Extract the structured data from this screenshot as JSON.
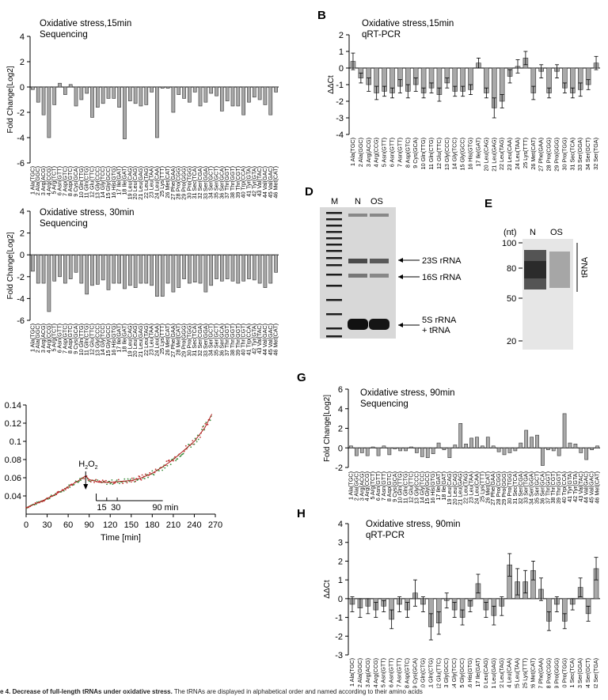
{
  "panels": {
    "B": "B",
    "D": "D",
    "E": "E",
    "G": "G",
    "H": "H"
  },
  "caption": {
    "bold": "e 4. Decrease of full-length tRNAs under oxidative stress.",
    "rest": " The tRNAs are displayed in alphabetical order and named according to their amino acids"
  },
  "gel_d": {
    "lanes": [
      "M",
      "N",
      "OS"
    ],
    "bands": [
      "23S rRNA",
      "16S rRNA",
      "5S rRNA",
      "+ tRNA"
    ]
  },
  "gel_e": {
    "lanes": [
      "N",
      "OS"
    ],
    "unit": "(nt)",
    "markers": [
      "100",
      "80",
      "50",
      "20"
    ],
    "bracket_label": "tRNA"
  },
  "chart_data": [
    {
      "id": "A",
      "type": "bar",
      "title": "Oxidative stress,15min",
      "subtitle": "Sequencing",
      "ylabel": "Fold Change[Log2]",
      "ylim": [
        -6,
        4
      ],
      "yticks": [
        "4",
        "2",
        "0",
        "-2",
        "-4",
        "-6"
      ],
      "categories": [
        "1 Ala(TGC)",
        "2 Ala(GGC)",
        "3 Arg(ACG)",
        "4 Arg(CCG)",
        "5 Arg(TCT)",
        "6 Asn(GTT)",
        "7 Asp(GTC)",
        "8 Asp(GTC)",
        "9 Cys(GCA)",
        "10 Gln(TTG)",
        "11 Gln(CTG)",
        "12 Glu(TTC)",
        "13 Gly(CCC)",
        "14 Gly(TCC)",
        "15 Gly(GCC)",
        "16 His(GTG)",
        "17 Ile(GAT)",
        "18 Ile(GAT)",
        "19 Leu(CAG)",
        "20 Leu(CAG)",
        "21 Leu(GAG)",
        "22 Leu(TAG)",
        "23 Leu(TAA)",
        "24 Leu(CAA)",
        "25 Lys(TTT)",
        "26 Met(CAT)",
        "27 Phe(GAA)",
        "28 Pro(CGG)",
        "29 Pro(GGG)",
        "30 Pro(TGG)",
        "31 Sec(TCA)",
        "32 Ser(CGA)",
        "33 Ser(GGA)",
        "34 Ser(GCT)",
        "35 Ser(GCT)",
        "36 Ser(GCA)",
        "37 Thr(GGT)",
        "38 Thr(GGT)",
        "39 Thr(CGT)",
        "40 Trp(CCA)",
        "41 Tyr(GTA)",
        "42 Tyr(GTA)",
        "43 Val(TAC)",
        "44 Val(GAC)",
        "45 Val(GAC)",
        "46 Met(CAT)"
      ],
      "values": [
        -0.2,
        -1.2,
        -2.2,
        -4.0,
        -1.4,
        0.3,
        -0.6,
        0.2,
        -1.5,
        -1.0,
        -0.5,
        -2.4,
        -1.6,
        -1.3,
        -0.9,
        -0.9,
        -1.6,
        -4.1,
        -1.1,
        -1.3,
        -1.5,
        -1.4,
        -0.4,
        -4.0,
        -0.1,
        -0.1,
        -2.0,
        -0.6,
        -0.9,
        -1.2,
        -0.4,
        -1.5,
        -1.2,
        -0.5,
        -0.7,
        -1.9,
        -1.1,
        -1.5,
        -1.5,
        -2.2,
        -1.2,
        -0.8,
        -1.0,
        -1.4,
        -2.2,
        -0.4
      ]
    },
    {
      "id": "B",
      "type": "bar",
      "title": "Oxidative stress,15min",
      "subtitle": "qRT-PCR",
      "ylabel": "ΔΔCt",
      "ylim": [
        -4,
        2
      ],
      "yticks": [
        "2",
        "1",
        "0",
        "-1",
        "-2",
        "-3",
        "-4"
      ],
      "categories": [
        "1 Ala(TGC)",
        "2 Ala(GGC)",
        "3 Arg(ACG)",
        "4 Arg(CCG)",
        "5 Asn(GTT)",
        "6 Asn(GTT)",
        "7 Asn(GTT)",
        "8 Asp(GTC)",
        "9 Cys(GCA)",
        "10 Gln(TTG)",
        "11 Gln(CTG)",
        "12 Glu(TTC)",
        "13 Gly(CCC)",
        "14 Gly(TCC)",
        "15 Gly(GCC)",
        "16 His(GTG)",
        "17 Ile(GAT)",
        "20 Leu(CAG)",
        "21 Leu(GAG)",
        "22 Leu(TAG)",
        "23 Leu(CAA)",
        "24 Leu(TAA)",
        "25 Lys(TTT)",
        "26 Met(CAT)",
        "27 Phe(GAA)",
        "28 Pro(CGG)",
        "29 Pro(GGG)",
        "30 Pro(TGG)",
        "31 Sec(TCA)",
        "33 Ser(GGA)",
        "34 Ser(GCT)",
        "32 Ser(TGA)"
      ],
      "values": [
        0.4,
        -0.6,
        -1.0,
        -1.5,
        -1.4,
        -1.5,
        -1.1,
        -1.4,
        -1.0,
        -1.5,
        -1.2,
        -1.6,
        -0.9,
        -1.4,
        -1.4,
        -1.3,
        0.3,
        -1.5,
        -2.4,
        -2.0,
        -0.5,
        0.1,
        0.6,
        -1.5,
        -0.2,
        -1.5,
        -0.2,
        -1.2,
        -1.5,
        -1.3,
        -1.0,
        0.3
      ],
      "errors": [
        0.5,
        0.3,
        0.4,
        0.4,
        0.3,
        0.3,
        0.4,
        0.4,
        0.4,
        0.3,
        0.3,
        0.4,
        0.3,
        0.3,
        0.3,
        0.3,
        0.3,
        0.3,
        0.6,
        0.4,
        0.4,
        0.4,
        0.4,
        0.4,
        0.4,
        0.3,
        0.4,
        0.3,
        0.3,
        0.4,
        0.3,
        0.4
      ]
    },
    {
      "id": "C",
      "type": "bar",
      "title": "Oxidative stress, 30min",
      "subtitle": "Sequencing",
      "ylabel": "Fold Change[Log2]",
      "ylim": [
        -6,
        4
      ],
      "yticks": [
        "4",
        "2",
        "0",
        "-2",
        "-4",
        "-6"
      ],
      "categories": [
        "1 Ala(TGC)",
        "2 Ala(GGC)",
        "3 Arg(ACG)",
        "4 Arg(CCG)",
        "5 Arg(TCT)",
        "6 Asn(GTT)",
        "7 Asp(GTC)",
        "8 Asp(GTC)",
        "9 Cys(GCA)",
        "10 Gln(TTG)",
        "11 Gln(CTG)",
        "12 Glu(TTC)",
        "13 Gly(CCC)",
        "14 Gly(TCC)",
        "15 Gly(GCC)",
        "16 His(GTG)",
        "17 Ile(GAT)",
        "18 Ile(GAT)",
        "19 Leu(CAG)",
        "20 Leu(CAG)",
        "21 Leu(GAG)",
        "22 Leu(TAG)",
        "23 Leu(TAA)",
        "24 Leu(CAA)",
        "25 Lys(TTT)",
        "26 Met(CAT)",
        "27 Phe(GAA)",
        "28 Met(CAT)",
        "29 Pro(GGG)",
        "30 Pro(TGG)",
        "31 Sec(TCA)",
        "32 Ser(CGA)",
        "33 Ser(GGA)",
        "34 Ser(GCT)",
        "35 Ser(GCT)",
        "36 Ser(GCA)",
        "37 Thr(GGT)",
        "38 Thr(GGT)",
        "39 Thr(GGT)",
        "40 Thr(CGT)",
        "41 Trp(CCA)",
        "42 Tyr(GTA)",
        "43 Val(TAC)",
        "44 Val(GAC)",
        "45 Val(GAC)",
        "46 Met(CAT)"
      ],
      "values": [
        -1.5,
        -2.6,
        -2.6,
        -5.2,
        -2.4,
        -2.0,
        -2.6,
        -2.2,
        -1.6,
        -2.6,
        -3.6,
        -2.8,
        -2.7,
        -2.3,
        -3.2,
        -2.6,
        -2.6,
        -3.1,
        -2.8,
        -3.0,
        -2.6,
        -2.6,
        -2.8,
        -3.8,
        -3.8,
        -2.6,
        -3.4,
        -3.0,
        -2.2,
        -2.6,
        -2.5,
        -2.6,
        -3.4,
        -2.8,
        -2.2,
        -2.4,
        -2.2,
        -2.4,
        -2.6,
        -2.4,
        -2.2,
        -2.3,
        -2.6,
        -3.0,
        -2.6,
        -1.6
      ]
    },
    {
      "id": "F",
      "type": "scatter",
      "ylim": [
        0.02,
        0.14
      ],
      "xlim": [
        0,
        270
      ],
      "xticks": [
        "0",
        "30",
        "60",
        "90",
        "120",
        "150",
        "180",
        "210",
        "240",
        "270"
      ],
      "yticks": [
        "0.14",
        "0.12",
        "0.1",
        "0.08",
        "0.06",
        "0.04"
      ],
      "xlabel": "Time [min]",
      "annotation": "H2O2",
      "bracket_labels": [
        "15",
        "30",
        "90 min"
      ],
      "x": [
        0,
        15,
        30,
        45,
        60,
        75,
        85,
        90,
        105,
        120,
        135,
        150,
        165,
        180,
        195,
        210,
        225,
        240,
        255,
        265
      ],
      "y": [
        0.027,
        0.032,
        0.037,
        0.043,
        0.05,
        0.057,
        0.062,
        0.058,
        0.055,
        0.055,
        0.056,
        0.057,
        0.06,
        0.065,
        0.072,
        0.08,
        0.09,
        0.1,
        0.115,
        0.13
      ]
    },
    {
      "id": "G",
      "type": "bar",
      "title": "Oxidative stress, 90min",
      "subtitle": "Sequencing",
      "ylabel": "Fold Change[Log2]",
      "ylim": [
        -2,
        6
      ],
      "yticks": [
        "6",
        "4",
        "2",
        "0",
        "-2"
      ],
      "categories": [
        "1 Ala(TGC)",
        "2 Ala(GGC)",
        "3 Arg(ACG)",
        "4 Arg(CCG)",
        "5 Arg(TCT)",
        "6 Asn(GTT)",
        "7 Asn(GTT)",
        "8 Asp(GTC)",
        "9 Cys(GCA)",
        "10 Gln(TTG)",
        "11 Gln(CTG)",
        "12 Glu(TTC)",
        "13 Gly(CCC)",
        "14 Gly(TCC)",
        "15 Gly(GCC)",
        "16 His(GTG)",
        "17 Ile(GAT)",
        "18 Ile(GAT)",
        "19 Leu(CAG)",
        "20 Leu(CAG)",
        "21 Leu(GAG)",
        "22 Leu(TAG)",
        "23 Leu(TAA)",
        "24 Leu(CAA)",
        "25 Lys(TTT)",
        "26 Met(CAT)",
        "27 Phe(GAA)",
        "28 Pro(CGG)",
        "29 Pro(GGG)",
        "30 Pro(TGG)",
        "31 Sec(TCA)",
        "32 Ser(CGA)",
        "33 Ser(TGA)",
        "34 Ser(GGA)",
        "35 Ser(GCT)",
        "36 Ser(GCA)",
        "37 Thr(GGT)",
        "38 Thr(CGT)",
        "39 Thr(GGT)",
        "40 Trp(CCA)",
        "41 Tyr(GTA)",
        "42 Tyr(GTA)",
        "43 Val(TAC)",
        "44 Val(GAC)",
        "45 Val(GAC)",
        "46 Met(CAT)"
      ],
      "values": [
        0.2,
        -0.8,
        -0.5,
        -0.8,
        0.1,
        -0.8,
        0.2,
        -0.7,
        -0.1,
        -0.3,
        -0.3,
        0.1,
        -0.5,
        -0.9,
        -1.0,
        -0.6,
        0.5,
        -0.2,
        -1.0,
        0.3,
        2.5,
        0.4,
        1.0,
        1.1,
        0.2,
        1.1,
        0.2,
        -0.4,
        -0.7,
        -0.5,
        -0.3,
        0.5,
        1.8,
        1.1,
        1.3,
        -1.8,
        -0.2,
        -0.3,
        -0.8,
        3.5,
        0.5,
        0.4,
        -0.5,
        -1.2,
        -0.2,
        0.2
      ]
    },
    {
      "id": "H",
      "type": "bar",
      "title": "Oxidative stress, 90min",
      "subtitle": "qRT-PCR",
      "ylabel": "ΔΔCt",
      "ylim": [
        -3,
        4
      ],
      "yticks": [
        "4",
        "3",
        "2",
        "1",
        "0",
        "-1",
        "-2",
        "-3"
      ],
      "categories": [
        "1 Ala(TGC)",
        "2 Ala(GGC)",
        "3 Arg(ACG)",
        "4 Arg(CCG)",
        "5 Asn(GTT)",
        "6 Asn(GTT)",
        "7 Asn(GTT)",
        "8 Asp(GTC)",
        "9 Cys(GCA)",
        "10 Gln(CTG)",
        "11 Gln(CTG)",
        "12 Glu(TTC)",
        "13 Gly(GCC)",
        "14 Gly(TCC)",
        "15 Gly(GCC)",
        "16 His(GTG)",
        "17 Ile(GAT)",
        "20 Leu(CAG)",
        "21 Leu(GAG)",
        "22 Leu(TAG)",
        "24 Leu(CAA)",
        "25 Leu(TAA)",
        "25 Lys(TTT)",
        "26 Met(CAT)",
        "27 Phe(GAA)",
        "28 Pro(CGG)",
        "29 Pro(GGG)",
        "30 Pro(TGG)",
        "31 Sec(TCA)",
        "33 Ser(GGA)",
        "34 Ser(GCT)",
        "32 Ser(TGA)"
      ],
      "values": [
        -0.3,
        -0.5,
        -0.4,
        -0.6,
        -0.4,
        -1.1,
        -0.3,
        -0.6,
        0.3,
        -0.3,
        -1.5,
        -1.3,
        -0.1,
        -0.6,
        -1.0,
        -0.4,
        0.8,
        -0.6,
        -0.9,
        -0.4,
        1.8,
        0.9,
        0.9,
        1.5,
        0.5,
        -1.2,
        -0.3,
        -1.2,
        -0.3,
        0.6,
        -0.8,
        1.6
      ],
      "errors": [
        0.4,
        0.5,
        0.4,
        0.4,
        0.3,
        0.5,
        0.4,
        0.4,
        0.7,
        0.4,
        0.7,
        0.6,
        0.4,
        0.4,
        0.4,
        0.3,
        0.5,
        0.4,
        0.5,
        0.5,
        0.6,
        0.7,
        0.6,
        0.5,
        0.6,
        0.5,
        0.4,
        0.4,
        0.3,
        0.5,
        0.4,
        0.6
      ]
    }
  ]
}
